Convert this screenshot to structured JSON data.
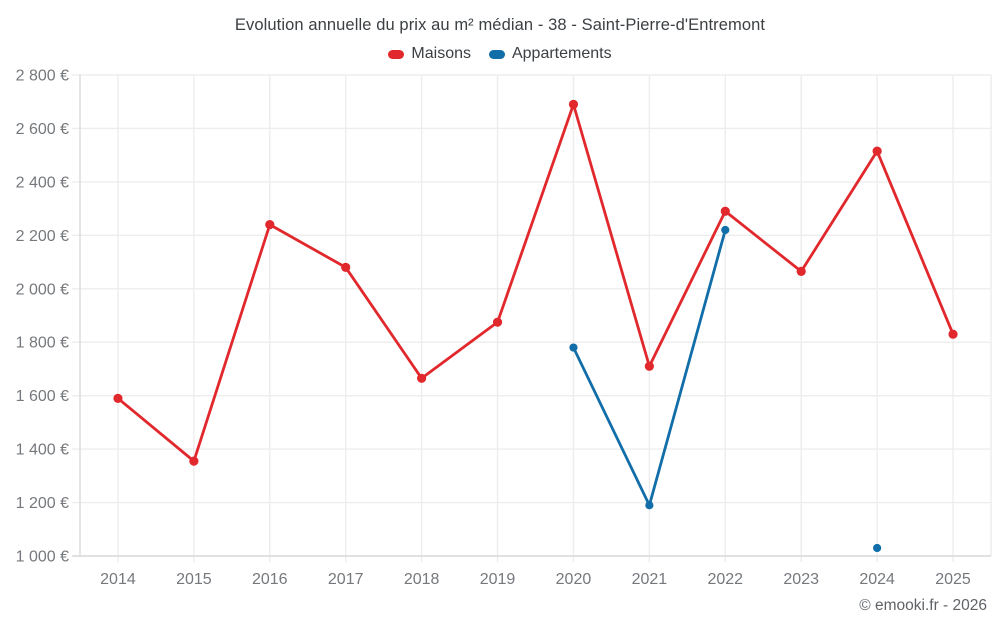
{
  "title": "Evolution annuelle du prix au m² médian - 38 - Saint-Pierre-d'Entremont",
  "legend": [
    {
      "label": "Maisons",
      "color": "#e1282d"
    },
    {
      "label": "Appartements",
      "color": "#126ea8"
    }
  ],
  "footer_credit": "© emooki.fr - 2026",
  "colors": {
    "maisons": "#e1282d",
    "appartements": "#126ea8",
    "grid": "#ededee",
    "axis": "#d7dadc",
    "tick_label": "#75787c",
    "title_text": "#3c4043",
    "footer_text": "#5f6368",
    "background": "#ffffff"
  },
  "chart_data": {
    "type": "line",
    "title": "Evolution annuelle du prix au m² médian - 38 - Saint-Pierre-d'Entremont",
    "categories": [
      "2014",
      "2015",
      "2016",
      "2017",
      "2018",
      "2019",
      "2020",
      "2021",
      "2022",
      "2023",
      "2024",
      "2025"
    ],
    "series": [
      {
        "name": "Maisons",
        "color": "#e1282d",
        "values": [
          1590,
          1355,
          2240,
          2080,
          1665,
          1875,
          2690,
          1710,
          2290,
          2065,
          2515,
          1830
        ]
      },
      {
        "name": "Appartements",
        "color": "#126ea8",
        "values": [
          null,
          null,
          null,
          null,
          null,
          null,
          1780,
          1190,
          2220,
          null,
          1030,
          null
        ]
      }
    ],
    "xlabel": "",
    "ylabel": "",
    "ylim": [
      1000,
      2800
    ],
    "ytick_step": 200,
    "ytick_labels": [
      "1 000 €",
      "1 200 €",
      "1 400 €",
      "1 600 €",
      "1 800 €",
      "2 000 €",
      "2 200 €",
      "2 400 €",
      "2 600 €",
      "2 800 €"
    ],
    "currency": "€",
    "grid": true,
    "legend_position": "top"
  }
}
